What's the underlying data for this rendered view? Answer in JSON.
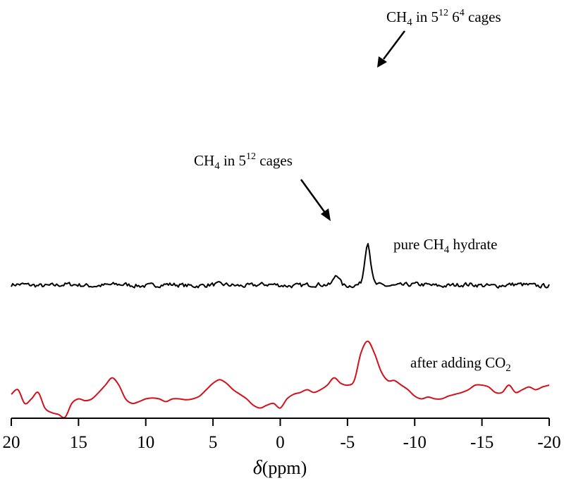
{
  "chart_data": {
    "type": "line",
    "title": "",
    "x_axis": {
      "label_symbol": "δ",
      "label_unit": "(ppm)",
      "xlim": [
        20,
        -20
      ],
      "ticks": [
        20,
        15,
        10,
        5,
        0,
        -5,
        -10,
        -15,
        -20
      ],
      "tick_labels": [
        "20",
        "15",
        "10",
        "5",
        "0",
        "-5",
        "-10",
        "-15",
        "-20"
      ],
      "reversed": true
    },
    "y_axis": {
      "shown": false
    },
    "grid": false,
    "series": [
      {
        "name": "pure CH4 hydrate",
        "color": "#000000",
        "baseline": 1.0,
        "noise_amplitude": 0.08,
        "peaks": [
          {
            "center": -4.2,
            "height": 0.46,
            "width": 0.3
          },
          {
            "center": -6.5,
            "height": 1.72,
            "width": 0.3
          }
        ]
      },
      {
        "name": "after adding CO2",
        "color": "#d4111b",
        "baseline": 0.0,
        "points": [
          [
            20,
            0.0
          ],
          [
            19.5,
            0.05
          ],
          [
            19.0,
            -0.1
          ],
          [
            18.5,
            -0.05
          ],
          [
            18.0,
            0.02
          ],
          [
            17.5,
            -0.15
          ],
          [
            17.0,
            -0.2
          ],
          [
            16.5,
            -0.22
          ],
          [
            16.0,
            -0.25
          ],
          [
            15.5,
            -0.1
          ],
          [
            15.0,
            -0.05
          ],
          [
            14.5,
            -0.07
          ],
          [
            14.0,
            -0.05
          ],
          [
            13.5,
            0.02
          ],
          [
            13.0,
            0.1
          ],
          [
            12.5,
            0.18
          ],
          [
            12.0,
            0.1
          ],
          [
            11.5,
            -0.05
          ],
          [
            11.0,
            -0.1
          ],
          [
            10.5,
            -0.08
          ],
          [
            10.0,
            -0.05
          ],
          [
            9.5,
            -0.04
          ],
          [
            9.0,
            -0.05
          ],
          [
            8.5,
            -0.08
          ],
          [
            8.0,
            -0.05
          ],
          [
            7.5,
            -0.05
          ],
          [
            7.0,
            -0.06
          ],
          [
            6.5,
            -0.05
          ],
          [
            6.0,
            -0.02
          ],
          [
            5.5,
            0.05
          ],
          [
            5.0,
            0.12
          ],
          [
            4.5,
            0.16
          ],
          [
            4.0,
            0.12
          ],
          [
            3.5,
            0.05
          ],
          [
            3.0,
            0.0
          ],
          [
            2.5,
            -0.05
          ],
          [
            2.0,
            -0.12
          ],
          [
            1.5,
            -0.15
          ],
          [
            1.0,
            -0.12
          ],
          [
            0.5,
            -0.1
          ],
          [
            0.0,
            -0.15
          ],
          [
            -0.5,
            -0.05
          ],
          [
            -1.0,
            0.0
          ],
          [
            -1.5,
            0.02
          ],
          [
            -2.0,
            0.05
          ],
          [
            -2.5,
            0.02
          ],
          [
            -3.0,
            0.05
          ],
          [
            -3.5,
            0.1
          ],
          [
            -4.0,
            0.18
          ],
          [
            -4.5,
            0.12
          ],
          [
            -5.0,
            0.1
          ],
          [
            -5.5,
            0.15
          ],
          [
            -6.0,
            0.45
          ],
          [
            -6.5,
            0.58
          ],
          [
            -7.0,
            0.45
          ],
          [
            -7.5,
            0.25
          ],
          [
            -8.0,
            0.15
          ],
          [
            -8.5,
            0.15
          ],
          [
            -9.0,
            0.1
          ],
          [
            -9.5,
            0.05
          ],
          [
            -10.0,
            -0.02
          ],
          [
            -10.5,
            -0.05
          ],
          [
            -11.0,
            -0.03
          ],
          [
            -11.5,
            -0.05
          ],
          [
            -12.0,
            -0.05
          ],
          [
            -12.5,
            -0.02
          ],
          [
            -13.0,
            0.0
          ],
          [
            -13.5,
            0.02
          ],
          [
            -14.0,
            0.05
          ],
          [
            -14.5,
            0.1
          ],
          [
            -15.0,
            0.1
          ],
          [
            -15.5,
            0.08
          ],
          [
            -16.0,
            0.02
          ],
          [
            -16.5,
            0.02
          ],
          [
            -17.0,
            0.1
          ],
          [
            -17.5,
            0.02
          ],
          [
            -18.0,
            0.05
          ],
          [
            -18.5,
            0.08
          ],
          [
            -19.0,
            0.05
          ],
          [
            -19.5,
            0.08
          ],
          [
            -20.0,
            0.1
          ]
        ]
      }
    ],
    "annotations": [
      {
        "id": "cages-large",
        "prefix": "CH",
        "sub": "4",
        "mid": " in 5",
        "sup": "12",
        "mid2": " 6",
        "sup2": "4",
        "suffix": " cages",
        "points_to_x": -6.5
      },
      {
        "id": "cages-small",
        "prefix": "CH",
        "sub": "4",
        "mid": " in 5",
        "sup": "12",
        "suffix": " cages",
        "points_to_x": -4.2
      },
      {
        "id": "label-pure",
        "prefix": "pure CH",
        "sub": "4",
        "suffix": " hydrate"
      },
      {
        "id": "label-co2",
        "prefix": "after adding CO",
        "sub": "2",
        "suffix": ""
      }
    ]
  }
}
